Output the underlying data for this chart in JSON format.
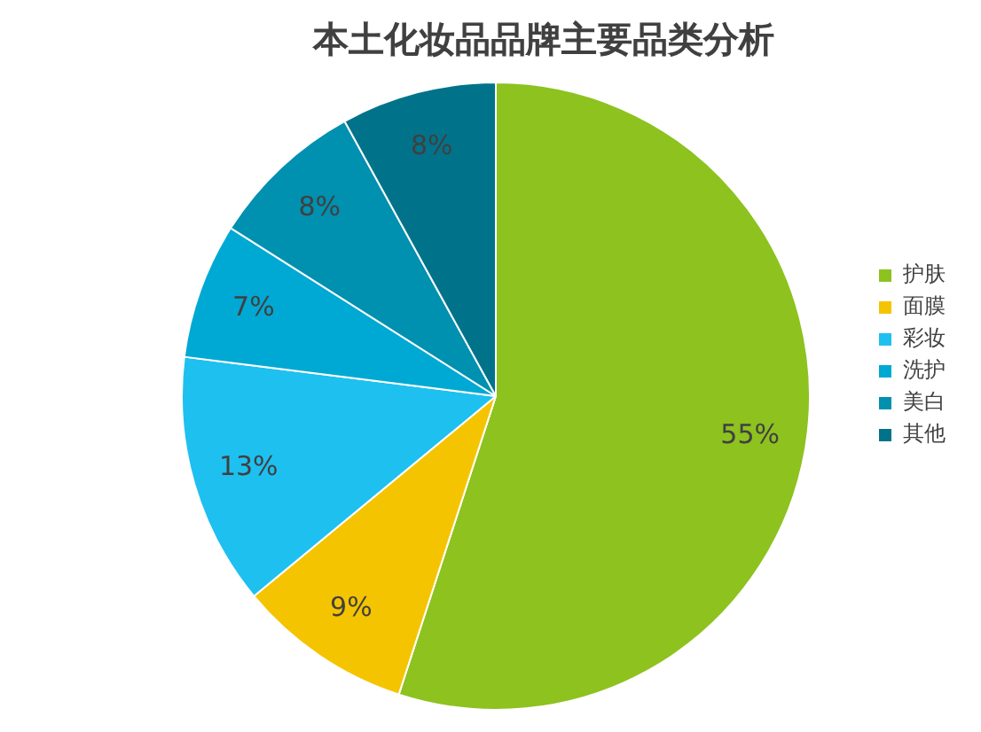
{
  "chart_data": {
    "type": "pie",
    "title": "本土化妆品品牌主要品类分析",
    "categories": [
      "护肤",
      "面膜",
      "彩妆",
      "洗护",
      "美白",
      "其他"
    ],
    "values": [
      55,
      9,
      13,
      7,
      8,
      8
    ],
    "colors": [
      "#8dc21f",
      "#f5c400",
      "#1ec0f0",
      "#00a9d4",
      "#0090b0",
      "#00738a"
    ],
    "value_labels": [
      "55%",
      "9%",
      "13%",
      "7%",
      "8%",
      "8%"
    ],
    "legend": "right"
  }
}
